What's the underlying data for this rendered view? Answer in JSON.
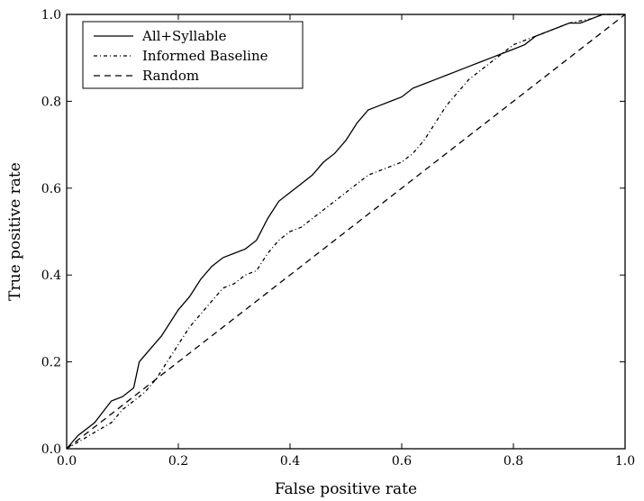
{
  "chart_data": {
    "type": "line",
    "title": "",
    "xlabel": "False positive rate",
    "ylabel": "True positive rate",
    "xlim": [
      0,
      1
    ],
    "ylim": [
      0,
      1
    ],
    "xticks": [
      "0.0",
      "0.2",
      "0.4",
      "0.6",
      "0.8",
      "1.0"
    ],
    "yticks": [
      "0.0",
      "0.2",
      "0.4",
      "0.6",
      "0.8",
      "1.0"
    ],
    "grid": false,
    "legend_position": "top-left",
    "series": [
      {
        "name": "All+Syllable",
        "style": "solid",
        "color": "#000000",
        "points": [
          [
            0,
            0
          ],
          [
            0.02,
            0.03
          ],
          [
            0.05,
            0.06
          ],
          [
            0.08,
            0.11
          ],
          [
            0.1,
            0.12
          ],
          [
            0.12,
            0.14
          ],
          [
            0.13,
            0.2
          ],
          [
            0.15,
            0.23
          ],
          [
            0.17,
            0.26
          ],
          [
            0.19,
            0.3
          ],
          [
            0.2,
            0.32
          ],
          [
            0.22,
            0.35
          ],
          [
            0.24,
            0.39
          ],
          [
            0.26,
            0.42
          ],
          [
            0.28,
            0.44
          ],
          [
            0.3,
            0.45
          ],
          [
            0.32,
            0.46
          ],
          [
            0.34,
            0.48
          ],
          [
            0.36,
            0.53
          ],
          [
            0.38,
            0.57
          ],
          [
            0.4,
            0.59
          ],
          [
            0.42,
            0.61
          ],
          [
            0.44,
            0.63
          ],
          [
            0.46,
            0.66
          ],
          [
            0.48,
            0.68
          ],
          [
            0.5,
            0.71
          ],
          [
            0.52,
            0.75
          ],
          [
            0.54,
            0.78
          ],
          [
            0.56,
            0.79
          ],
          [
            0.58,
            0.8
          ],
          [
            0.6,
            0.81
          ],
          [
            0.62,
            0.83
          ],
          [
            0.64,
            0.84
          ],
          [
            0.66,
            0.85
          ],
          [
            0.68,
            0.86
          ],
          [
            0.7,
            0.87
          ],
          [
            0.72,
            0.88
          ],
          [
            0.74,
            0.89
          ],
          [
            0.76,
            0.9
          ],
          [
            0.78,
            0.91
          ],
          [
            0.8,
            0.92
          ],
          [
            0.82,
            0.93
          ],
          [
            0.84,
            0.95
          ],
          [
            0.86,
            0.96
          ],
          [
            0.88,
            0.97
          ],
          [
            0.9,
            0.98
          ],
          [
            0.92,
            0.98
          ],
          [
            0.94,
            0.99
          ],
          [
            0.96,
            1.0
          ],
          [
            1.0,
            1.0
          ]
        ]
      },
      {
        "name": "Informed Baseline",
        "style": "dashdot",
        "color": "#000000",
        "points": [
          [
            0,
            0
          ],
          [
            0.04,
            0.03
          ],
          [
            0.08,
            0.06
          ],
          [
            0.1,
            0.09
          ],
          [
            0.12,
            0.11
          ],
          [
            0.14,
            0.13
          ],
          [
            0.16,
            0.16
          ],
          [
            0.18,
            0.2
          ],
          [
            0.2,
            0.24
          ],
          [
            0.22,
            0.28
          ],
          [
            0.24,
            0.31
          ],
          [
            0.26,
            0.34
          ],
          [
            0.28,
            0.37
          ],
          [
            0.3,
            0.38
          ],
          [
            0.32,
            0.4
          ],
          [
            0.34,
            0.41
          ],
          [
            0.36,
            0.45
          ],
          [
            0.38,
            0.48
          ],
          [
            0.4,
            0.5
          ],
          [
            0.42,
            0.51
          ],
          [
            0.44,
            0.53
          ],
          [
            0.46,
            0.55
          ],
          [
            0.48,
            0.57
          ],
          [
            0.5,
            0.59
          ],
          [
            0.52,
            0.61
          ],
          [
            0.54,
            0.63
          ],
          [
            0.56,
            0.64
          ],
          [
            0.58,
            0.65
          ],
          [
            0.6,
            0.66
          ],
          [
            0.62,
            0.68
          ],
          [
            0.64,
            0.71
          ],
          [
            0.66,
            0.75
          ],
          [
            0.68,
            0.79
          ],
          [
            0.7,
            0.82
          ],
          [
            0.72,
            0.85
          ],
          [
            0.74,
            0.87
          ],
          [
            0.76,
            0.89
          ],
          [
            0.78,
            0.91
          ],
          [
            0.8,
            0.93
          ],
          [
            0.82,
            0.94
          ],
          [
            0.84,
            0.95
          ],
          [
            0.86,
            0.96
          ],
          [
            0.88,
            0.97
          ],
          [
            0.9,
            0.98
          ],
          [
            0.94,
            0.99
          ],
          [
            0.96,
            1.0
          ],
          [
            1.0,
            1.0
          ]
        ]
      },
      {
        "name": "Random",
        "style": "dashed",
        "color": "#000000",
        "points": [
          [
            0,
            0
          ],
          [
            1,
            1
          ]
        ]
      }
    ]
  }
}
